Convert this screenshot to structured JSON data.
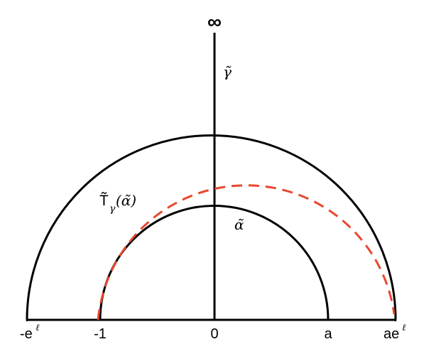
{
  "diagram": {
    "colors": {
      "stroke": "#000000",
      "dashed_curve": "#e8472f",
      "background": "#ffffff"
    },
    "labels": {
      "infinity": "∞",
      "gamma_tilde": "γ̃",
      "alpha_tilde": "α̃",
      "t_gamma_base": "T̃",
      "t_gamma_sub": "γ",
      "t_gamma_arg": "(α̃)",
      "tick_neg_e": "-e",
      "tick_neg_e_sup": "ℓ",
      "tick_neg_one": "-1",
      "tick_zero": "0",
      "tick_a": "a",
      "tick_ae": "ae",
      "tick_ae_sup": "ℓ"
    }
  }
}
